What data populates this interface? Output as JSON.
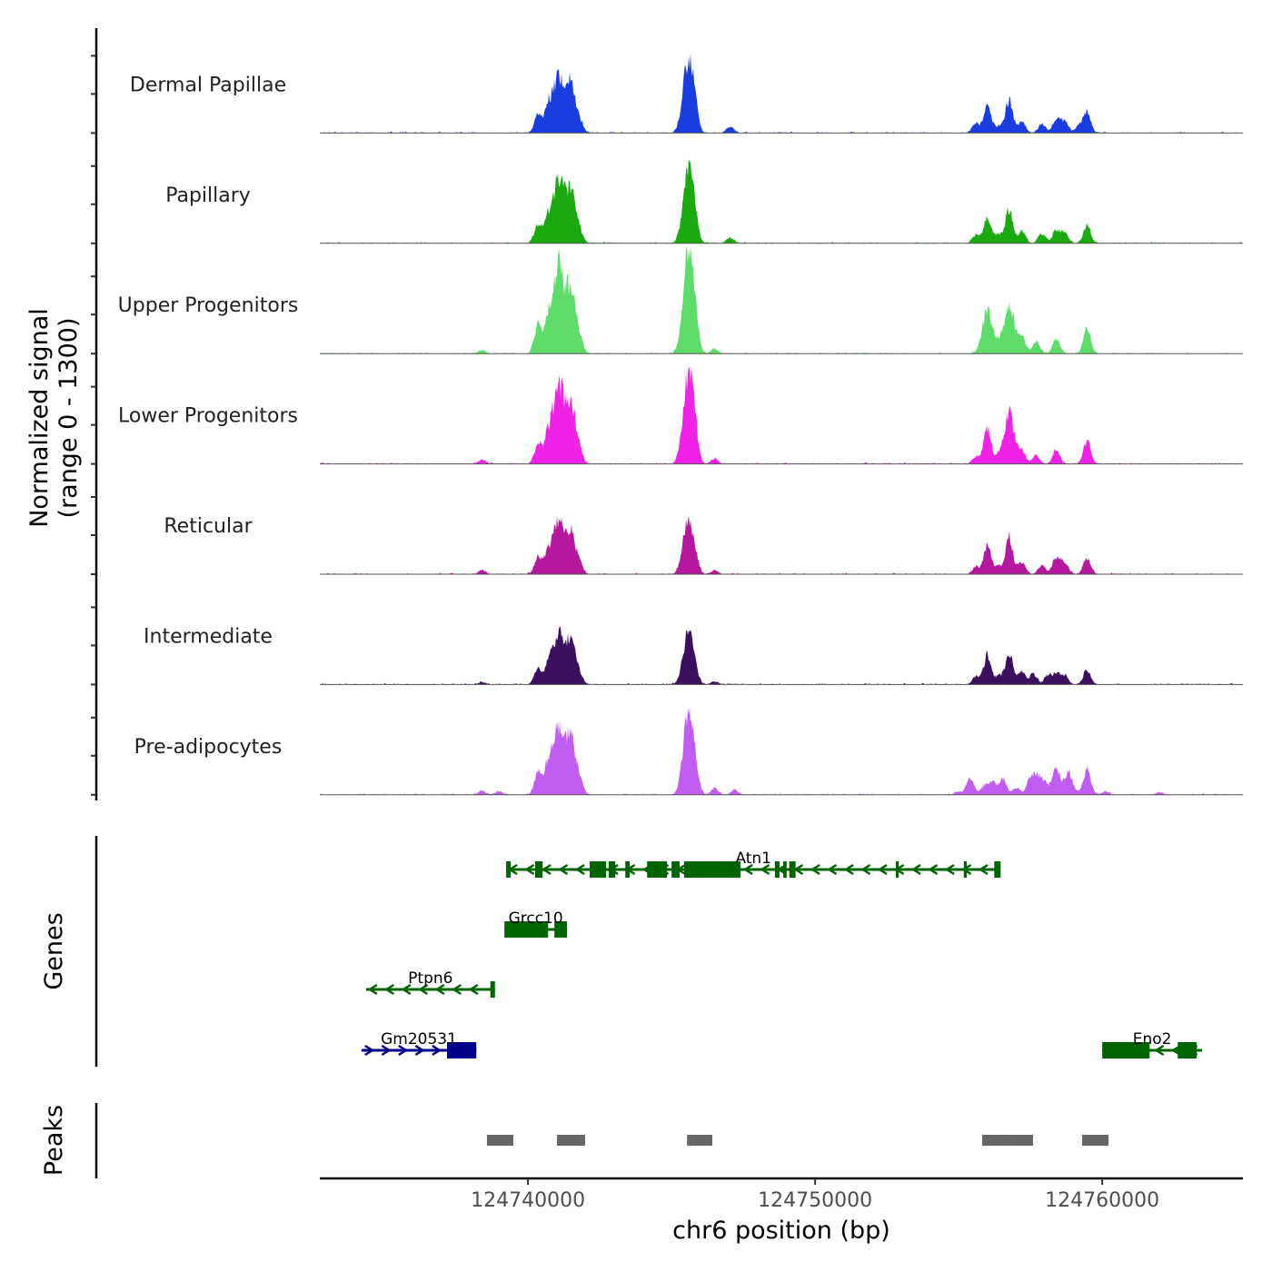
{
  "chart_data": {
    "type": "area",
    "title": "",
    "xlabel": "chr6 position (bp)",
    "ylabel": "Normalized signal\n(range 0 - 1300)",
    "ylabel_lines": [
      "Normalized signal",
      "(range 0 - 1300)"
    ],
    "ylim": [
      0,
      1300
    ],
    "xlim": [
      124732750,
      124764900
    ],
    "x_ticks": [
      124740000,
      124750000,
      124760000
    ],
    "x_tick_labels": [
      "124740000",
      "124750000",
      "124760000"
    ],
    "grid": false,
    "legend": "none",
    "series": [
      {
        "name": "Dermal Papillae",
        "color": "#1a3de0",
        "peaks": [
          {
            "pos": 124740350,
            "value": 230
          },
          {
            "pos": 124740700,
            "value": 300
          },
          {
            "pos": 124741050,
            "value": 690
          },
          {
            "pos": 124741480,
            "value": 580
          },
          {
            "pos": 124741800,
            "value": 120
          },
          {
            "pos": 124745570,
            "value": 880
          },
          {
            "pos": 124745800,
            "value": 220
          },
          {
            "pos": 124747040,
            "value": 80
          },
          {
            "pos": 124755600,
            "value": 110
          },
          {
            "pos": 124756000,
            "value": 370
          },
          {
            "pos": 124756400,
            "value": 90
          },
          {
            "pos": 124756760,
            "value": 410
          },
          {
            "pos": 124757200,
            "value": 140
          },
          {
            "pos": 124757900,
            "value": 110
          },
          {
            "pos": 124758400,
            "value": 180
          },
          {
            "pos": 124758700,
            "value": 150
          },
          {
            "pos": 124759200,
            "value": 90
          },
          {
            "pos": 124759470,
            "value": 250
          }
        ]
      },
      {
        "name": "Papillary",
        "color": "#1aaa10",
        "peaks": [
          {
            "pos": 124740350,
            "value": 240
          },
          {
            "pos": 124740700,
            "value": 300
          },
          {
            "pos": 124741050,
            "value": 790
          },
          {
            "pos": 124741480,
            "value": 680
          },
          {
            "pos": 124741800,
            "value": 110
          },
          {
            "pos": 124745570,
            "value": 850
          },
          {
            "pos": 124745800,
            "value": 260
          },
          {
            "pos": 124747040,
            "value": 70
          },
          {
            "pos": 124755600,
            "value": 100
          },
          {
            "pos": 124756000,
            "value": 330
          },
          {
            "pos": 124756400,
            "value": 110
          },
          {
            "pos": 124756760,
            "value": 420
          },
          {
            "pos": 124757200,
            "value": 150
          },
          {
            "pos": 124757900,
            "value": 120
          },
          {
            "pos": 124758400,
            "value": 170
          },
          {
            "pos": 124758700,
            "value": 120
          },
          {
            "pos": 124759470,
            "value": 220
          }
        ]
      },
      {
        "name": "Upper Progenitors",
        "color": "#5ddc6a",
        "peaks": [
          {
            "pos": 124740350,
            "value": 360
          },
          {
            "pos": 124740700,
            "value": 420
          },
          {
            "pos": 124741050,
            "value": 1060
          },
          {
            "pos": 124741480,
            "value": 800
          },
          {
            "pos": 124741800,
            "value": 130
          },
          {
            "pos": 124745570,
            "value": 1210
          },
          {
            "pos": 124745800,
            "value": 380
          },
          {
            "pos": 124746500,
            "value": 60
          },
          {
            "pos": 124738400,
            "value": 40
          },
          {
            "pos": 124756000,
            "value": 510
          },
          {
            "pos": 124756400,
            "value": 100
          },
          {
            "pos": 124756760,
            "value": 610
          },
          {
            "pos": 124757200,
            "value": 200
          },
          {
            "pos": 124757700,
            "value": 140
          },
          {
            "pos": 124758400,
            "value": 190
          },
          {
            "pos": 124759470,
            "value": 300
          }
        ]
      },
      {
        "name": "Lower Progenitors",
        "color": "#ef22e6",
        "peaks": [
          {
            "pos": 124740350,
            "value": 260
          },
          {
            "pos": 124740700,
            "value": 330
          },
          {
            "pos": 124741050,
            "value": 970
          },
          {
            "pos": 124741480,
            "value": 770
          },
          {
            "pos": 124741800,
            "value": 120
          },
          {
            "pos": 124745570,
            "value": 1080
          },
          {
            "pos": 124745800,
            "value": 300
          },
          {
            "pos": 124746500,
            "value": 60
          },
          {
            "pos": 124738400,
            "value": 50
          },
          {
            "pos": 124755600,
            "value": 90
          },
          {
            "pos": 124756000,
            "value": 450
          },
          {
            "pos": 124756400,
            "value": 100
          },
          {
            "pos": 124756760,
            "value": 620
          },
          {
            "pos": 124757200,
            "value": 160
          },
          {
            "pos": 124757700,
            "value": 100
          },
          {
            "pos": 124758400,
            "value": 170
          },
          {
            "pos": 124759470,
            "value": 280
          }
        ]
      },
      {
        "name": "Reticular",
        "color": "#b5179e",
        "peaks": [
          {
            "pos": 124740350,
            "value": 210
          },
          {
            "pos": 124740700,
            "value": 260
          },
          {
            "pos": 124741050,
            "value": 610
          },
          {
            "pos": 124741480,
            "value": 540
          },
          {
            "pos": 124741800,
            "value": 90
          },
          {
            "pos": 124745570,
            "value": 620
          },
          {
            "pos": 124745800,
            "value": 180
          },
          {
            "pos": 124746500,
            "value": 50
          },
          {
            "pos": 124738400,
            "value": 50
          },
          {
            "pos": 124755600,
            "value": 90
          },
          {
            "pos": 124756000,
            "value": 350
          },
          {
            "pos": 124756400,
            "value": 100
          },
          {
            "pos": 124756760,
            "value": 460
          },
          {
            "pos": 124757200,
            "value": 150
          },
          {
            "pos": 124757900,
            "value": 110
          },
          {
            "pos": 124758400,
            "value": 220
          },
          {
            "pos": 124758700,
            "value": 140
          },
          {
            "pos": 124759470,
            "value": 200
          }
        ]
      },
      {
        "name": "Intermediate",
        "color": "#3a0f5e",
        "peaks": [
          {
            "pos": 124740350,
            "value": 200
          },
          {
            "pos": 124740700,
            "value": 240
          },
          {
            "pos": 124741050,
            "value": 630
          },
          {
            "pos": 124741480,
            "value": 560
          },
          {
            "pos": 124741800,
            "value": 80
          },
          {
            "pos": 124745570,
            "value": 600
          },
          {
            "pos": 124745800,
            "value": 120
          },
          {
            "pos": 124746500,
            "value": 40
          },
          {
            "pos": 124738400,
            "value": 30
          },
          {
            "pos": 124755600,
            "value": 100
          },
          {
            "pos": 124756000,
            "value": 370
          },
          {
            "pos": 124756400,
            "value": 110
          },
          {
            "pos": 124756760,
            "value": 380
          },
          {
            "pos": 124757200,
            "value": 160
          },
          {
            "pos": 124757600,
            "value": 130
          },
          {
            "pos": 124758100,
            "value": 110
          },
          {
            "pos": 124758400,
            "value": 140
          },
          {
            "pos": 124758700,
            "value": 100
          },
          {
            "pos": 124759470,
            "value": 180
          }
        ]
      },
      {
        "name": "Pre-adipocytes",
        "color": "#c05cf2",
        "peaks": [
          {
            "pos": 124738400,
            "value": 50
          },
          {
            "pos": 124739000,
            "value": 40
          },
          {
            "pos": 124740350,
            "value": 270
          },
          {
            "pos": 124740700,
            "value": 380
          },
          {
            "pos": 124741050,
            "value": 820
          },
          {
            "pos": 124741480,
            "value": 750
          },
          {
            "pos": 124741800,
            "value": 130
          },
          {
            "pos": 124745570,
            "value": 940
          },
          {
            "pos": 124745800,
            "value": 300
          },
          {
            "pos": 124746500,
            "value": 80
          },
          {
            "pos": 124747200,
            "value": 60
          },
          {
            "pos": 124755000,
            "value": 40
          },
          {
            "pos": 124755400,
            "value": 210
          },
          {
            "pos": 124755900,
            "value": 110
          },
          {
            "pos": 124756200,
            "value": 160
          },
          {
            "pos": 124756550,
            "value": 180
          },
          {
            "pos": 124757020,
            "value": 80
          },
          {
            "pos": 124757500,
            "value": 220
          },
          {
            "pos": 124757750,
            "value": 200
          },
          {
            "pos": 124758000,
            "value": 140
          },
          {
            "pos": 124758400,
            "value": 340
          },
          {
            "pos": 124758800,
            "value": 260
          },
          {
            "pos": 124759000,
            "value": 60
          },
          {
            "pos": 124759470,
            "value": 320
          },
          {
            "pos": 124760100,
            "value": 40
          },
          {
            "pos": 124762000,
            "value": 30
          }
        ]
      }
    ],
    "genes_track": {
      "label": "Genes",
      "genes": [
        {
          "name": "Atn1",
          "strand": "-",
          "color": "#006400",
          "row": 0,
          "start": 124739240,
          "end": 124756460,
          "exons": [
            [
              124739240,
              124739400
            ],
            [
              124740250,
              124740510
            ],
            [
              124742150,
              124742720
            ],
            [
              124742810,
              124743040
            ],
            [
              124743390,
              124743540
            ],
            [
              124744150,
              124744840
            ],
            [
              124745000,
              124745280
            ],
            [
              124745440,
              124747400
            ],
            [
              124748600,
              124748760
            ],
            [
              124748890,
              124749010
            ],
            [
              124749100,
              124749320
            ],
            [
              124752810,
              124752910
            ],
            [
              124755180,
              124755280
            ],
            [
              124756240,
              124756460
            ]
          ]
        },
        {
          "name": "Grcc10",
          "strand": "",
          "color": "#006400",
          "row": 1,
          "start": 124739180,
          "end": 124741360,
          "exons": [
            [
              124739180,
              124740700
            ],
            [
              124740920,
              124741360
            ]
          ]
        },
        {
          "name": "Ptpn6",
          "strand": "-",
          "color": "#006400",
          "row": 2,
          "start": 124734360,
          "end": 124738850,
          "exons": [
            [
              124738690,
              124738850
            ]
          ]
        },
        {
          "name": "Gm20531",
          "strand": "+",
          "color": "#00008b",
          "row": 3,
          "start": 124734200,
          "end": 124738200,
          "exons": [
            [
              124737180,
              124738200
            ]
          ]
        },
        {
          "name": "Eno2",
          "strand": "-",
          "color": "#006400",
          "row": 3,
          "start": 124760000,
          "end": 124763480,
          "exons": [
            [
              124760000,
              124761650
            ],
            [
              124762630,
              124763290
            ]
          ]
        }
      ]
    },
    "peaks_track": {
      "label": "Peaks",
      "color": "#666666",
      "regions": [
        [
          124738570,
          124739490
        ],
        [
          124741010,
          124741990
        ],
        [
          124745540,
          124746420
        ],
        [
          124755820,
          124756640
        ],
        [
          124756640,
          124757590
        ],
        [
          124759300,
          124760220
        ]
      ]
    }
  }
}
